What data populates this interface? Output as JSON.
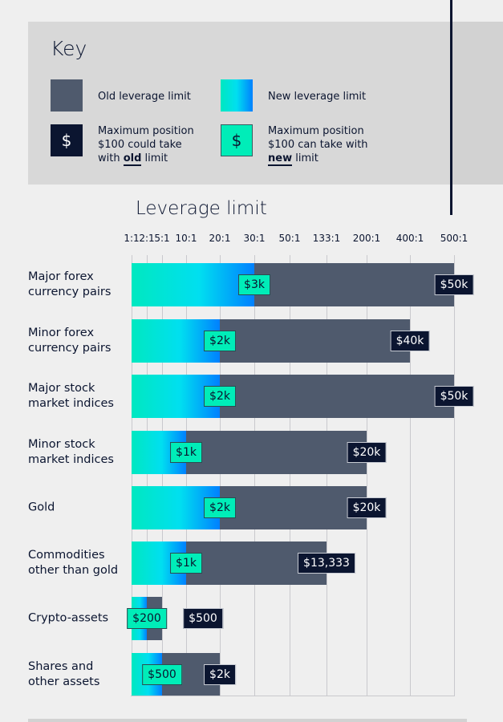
{
  "key": {
    "title": "Key",
    "old_label": "Old leverage limit",
    "new_label": "New leverage limit",
    "old_pos_lines": [
      "Maximum position",
      "$100 could take",
      "with "
    ],
    "old_pos_bold": "old",
    "old_pos_tail": " limit",
    "new_pos_lines": [
      "Maximum position",
      "$100 can take with"
    ],
    "new_pos_bold": "new",
    "new_pos_tail": " limit",
    "dollar": "$"
  },
  "chart_data": {
    "type": "bar",
    "orientation": "horizontal",
    "title": "Leverage limit",
    "ticks": [
      "1:1",
      "2:1",
      "5:1",
      "10:1",
      "20:1",
      "30:1",
      "50:1",
      "133:1",
      "200:1",
      "400:1",
      "500:1"
    ],
    "categories": [
      "Major forex currency pairs",
      "Minor forex currency pairs",
      "Major stock market indices",
      "Minor stock market indices",
      "Gold",
      "Commodities other than gold",
      "Crypto-assets",
      "Shares and other assets"
    ],
    "category_lines": [
      [
        "Major forex",
        "currency pairs"
      ],
      [
        "Minor forex",
        "currency pairs"
      ],
      [
        "Major stock",
        "market indices"
      ],
      [
        "Minor stock",
        "market indices"
      ],
      [
        "Gold"
      ],
      [
        "Commodities",
        "other than gold"
      ],
      [
        "Crypto-assets"
      ],
      [
        "Shares and",
        "other assets"
      ]
    ],
    "series": [
      {
        "name": "Old leverage limit",
        "values": [
          "500:1",
          "400:1",
          "500:1",
          "200:1",
          "200:1",
          "133:1",
          "5:1",
          "20:1"
        ],
        "labels": [
          "$50k",
          "$40k",
          "$50k",
          "$20k",
          "$20k",
          "$13,333",
          "$500",
          "$2k"
        ]
      },
      {
        "name": "New leverage limit",
        "values": [
          "30:1",
          "20:1",
          "20:1",
          "10:1",
          "20:1",
          "10:1",
          "2:1",
          "5:1"
        ],
        "labels": [
          "$3k",
          "$2k",
          "$2k",
          "$1k",
          "$2k",
          "$1k",
          "$200",
          "$500"
        ]
      }
    ],
    "grid": true,
    "colors": {
      "old": "#4f5a6d",
      "new_start": "#00e8c0",
      "new_end": "#0080ff",
      "old_label": "#0b1530",
      "new_label": "#00edb8"
    }
  }
}
